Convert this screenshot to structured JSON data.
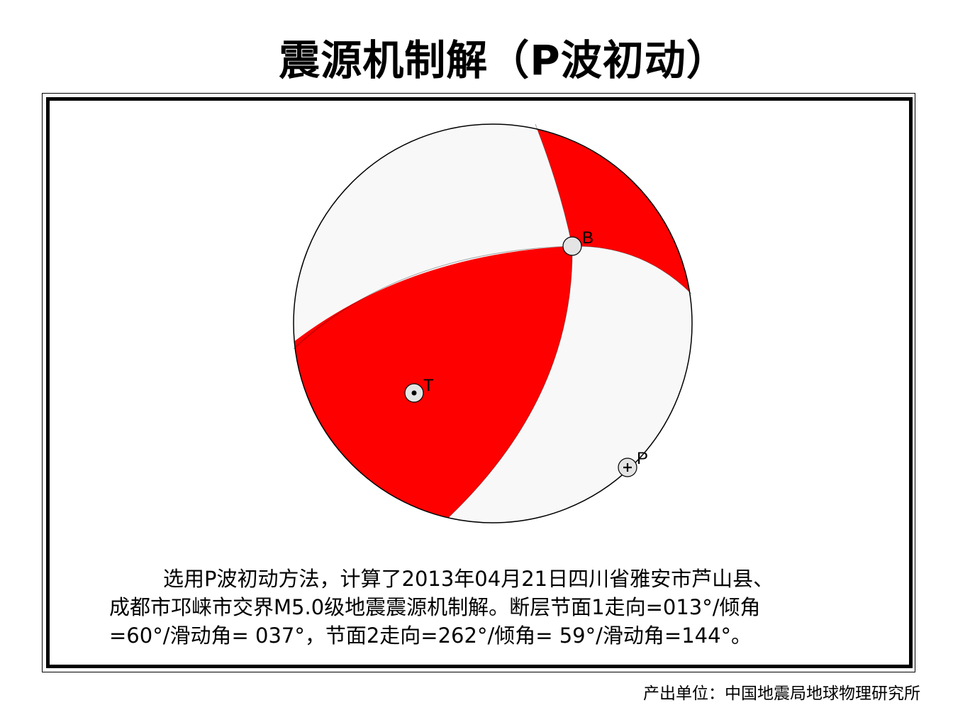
{
  "title": "震源机制解（P波初动）",
  "axes": {
    "b_label": "B",
    "t_label": "T",
    "p_label": "P"
  },
  "colors": {
    "compressional": "#ff0000",
    "dilatational": "#f8f8f8",
    "outline": "#000000"
  },
  "description": {
    "line1": "选用P波初动方法，计算了2013年04月21日四川省雅安市芦山县、",
    "line2": "成都市邛崃市交界M5.0级地震震源机制解。断层节面1走向=013°/倾角",
    "line3": "=60°/滑动角= 037°，节面2走向=262°/倾角= 59°/滑动角=144°。"
  },
  "producer": "产出单位：中国地震局地球物理研究所"
}
